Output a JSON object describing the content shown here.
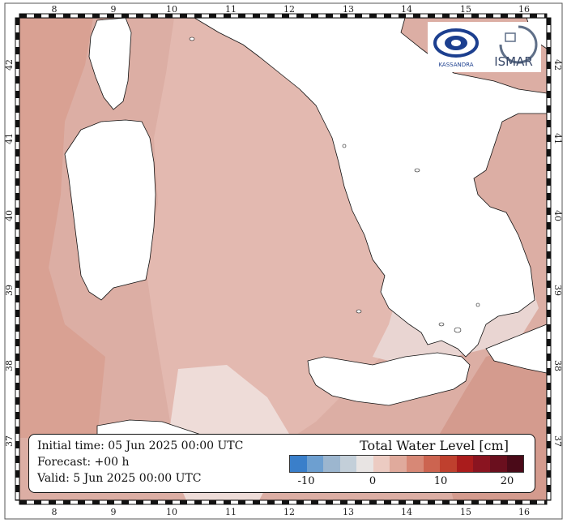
{
  "map": {
    "lon_ticks": [
      "8",
      "9",
      "10",
      "11",
      "12",
      "13",
      "14",
      "15",
      "16"
    ],
    "lat_ticks": [
      "42",
      "41",
      "40",
      "39",
      "38",
      "37"
    ]
  },
  "info": {
    "initial_time": "Initial time: 05 Jun 2025 00:00 UTC",
    "forecast": "Forecast: +00 h",
    "valid": "Valid:  5 Jun 2025 00:00 UTC"
  },
  "colorbar": {
    "title": "Total Water Level [cm]",
    "tick_labels": [
      "-10",
      "0",
      "10",
      "20"
    ],
    "colors": [
      "#3a7fca",
      "#6d9fd0",
      "#9cb6cf",
      "#c3cfd9",
      "#e8e4e3",
      "#eccbc2",
      "#e0aa9c",
      "#d78876",
      "#cc6450",
      "#bf402e",
      "#aa1c1c",
      "#8a1420",
      "#6a0f1e",
      "#4a0a18"
    ]
  },
  "logos": {
    "left_logo_text": "KASSANDRA",
    "right_logo_text": "ISMAR"
  }
}
